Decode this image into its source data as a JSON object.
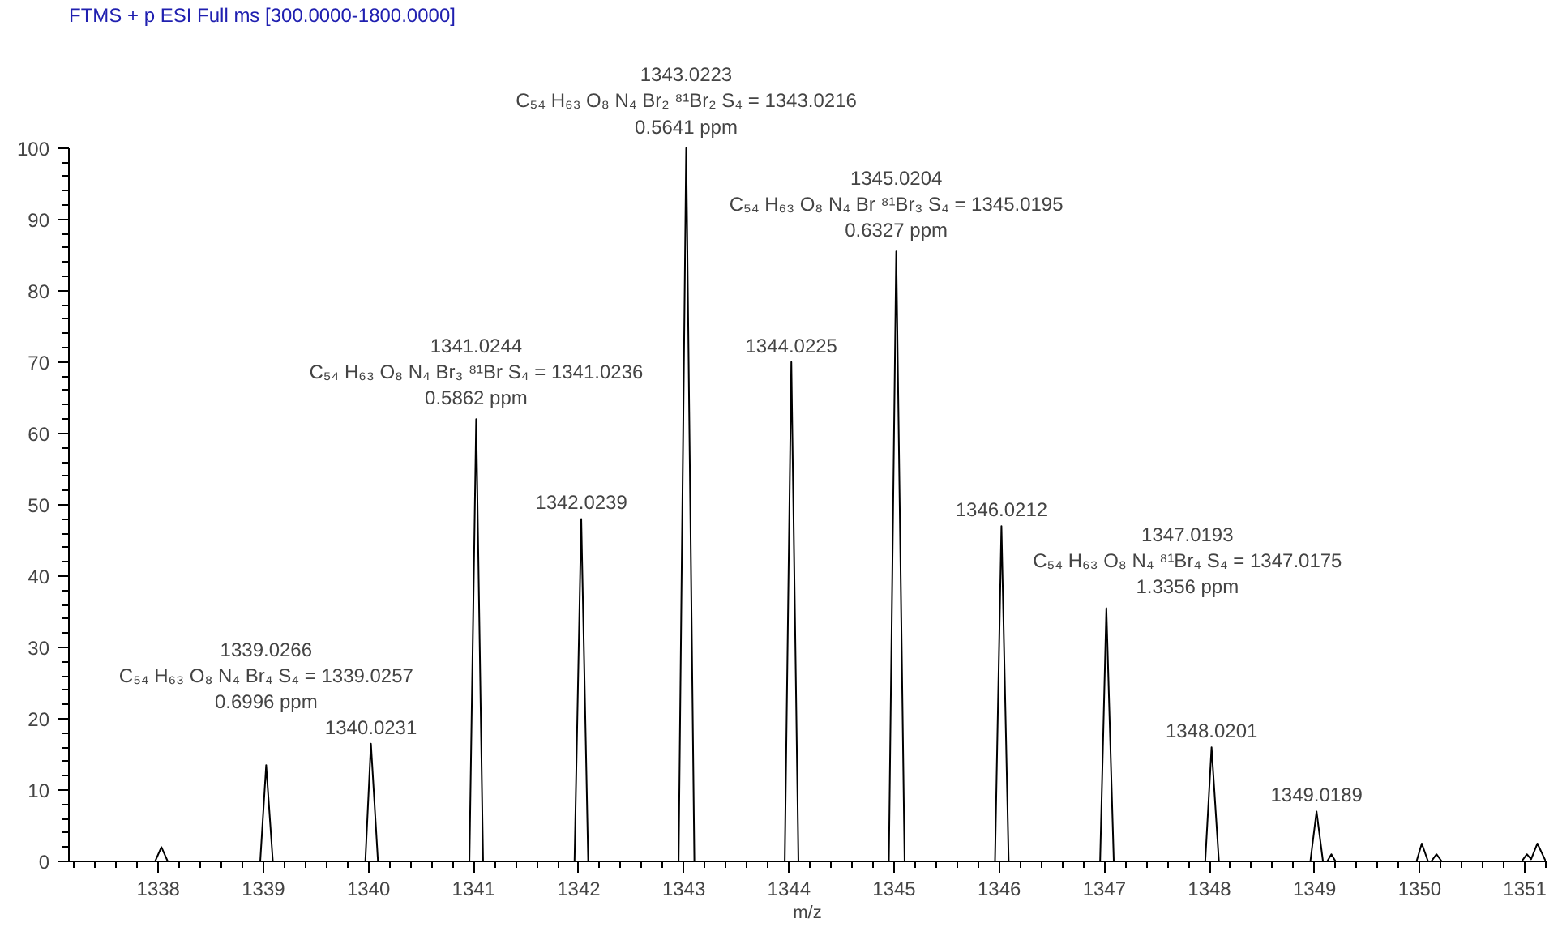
{
  "chart_data": {
    "type": "line",
    "title": "FTMS + p ESI Full ms [300.0000-1800.0000]",
    "xlabel": "m/z",
    "xlim": [
      1337.15,
      1351.2
    ],
    "xticks": [
      1338,
      1339,
      1340,
      1341,
      1342,
      1343,
      1344,
      1345,
      1346,
      1347,
      1348,
      1349,
      1350,
      1351
    ],
    "ylim": [
      0,
      100
    ],
    "yticks": [
      0,
      10,
      20,
      30,
      40,
      50,
      60,
      70,
      80,
      90,
      100
    ],
    "grid": false,
    "series": [
      {
        "color": "#000000",
        "x": [
          1337.15,
          1337.97,
          1338.03,
          1338.09,
          1338.97,
          1339.0266,
          1339.09,
          1339.97,
          1340.0231,
          1340.09,
          1340.96,
          1341.0244,
          1341.09,
          1341.96,
          1342.0239,
          1342.09,
          1342.95,
          1343.0223,
          1343.1,
          1343.96,
          1344.0225,
          1344.09,
          1344.95,
          1345.0204,
          1345.1,
          1345.96,
          1346.0212,
          1346.09,
          1346.96,
          1347.0193,
          1347.09,
          1347.96,
          1348.0201,
          1348.09,
          1348.96,
          1349.0189,
          1349.08,
          1349.12,
          1349.16,
          1349.2,
          1349.97,
          1350.02,
          1350.08,
          1350.11,
          1350.16,
          1350.21,
          1350.97,
          1351.02,
          1351.06,
          1351.12,
          1351.2
        ],
        "values": [
          0,
          0,
          2,
          0,
          0,
          13.5,
          0,
          0,
          16.5,
          0,
          0,
          62,
          0,
          0,
          48,
          0,
          0,
          100,
          0,
          0,
          70,
          0,
          0,
          85.5,
          0,
          0,
          47,
          0,
          0,
          35.5,
          0,
          0,
          16,
          0,
          0,
          7,
          0,
          0,
          1,
          0,
          0,
          2.5,
          0,
          0,
          1,
          0,
          0,
          1,
          0.3,
          2.5,
          0
        ]
      }
    ],
    "annotations": [
      {
        "text": "1339.0266\nC₅₄ H₆₃ O₈ N₄ Br₄ S₄ = 1339.0257\n0.6996 ppm",
        "x": 1339.0266,
        "y": 13.5
      },
      {
        "text": "1340.0231",
        "x": 1340.0231,
        "y": 16.5
      },
      {
        "text": "1341.0244\nC₅₄ H₆₃ O₈ N₄ Br₃ ⁸¹Br S₄ = 1341.0236\n0.5862 ppm",
        "x": 1341.0244,
        "y": 62
      },
      {
        "text": "1342.0239",
        "x": 1342.0239,
        "y": 48
      },
      {
        "text": "1343.0223\nC₅₄ H₆₃ O₈ N₄ Br₂ ⁸¹Br₂ S₄ = 1343.0216\n0.5641 ppm",
        "x": 1343.0223,
        "y": 100
      },
      {
        "text": "1344.0225",
        "x": 1344.0225,
        "y": 70
      },
      {
        "text": "1345.0204\nC₅₄ H₆₃ O₈ N₄ Br ⁸¹Br₃ S₄ = 1345.0195\n0.6327 ppm",
        "x": 1345.0204,
        "y": 85.5
      },
      {
        "text": "1346.0212",
        "x": 1346.0212,
        "y": 47
      },
      {
        "text": "1347.0193\nC₅₄ H₆₃ O₈ N₄ ⁸¹Br₄ S₄ = 1347.0175\n1.3356 ppm",
        "x": 1347.0193,
        "y": 35.5
      },
      {
        "text": "1348.0201",
        "x": 1348.0201,
        "y": 16
      },
      {
        "text": "1349.0189",
        "x": 1349.0189,
        "y": 7
      }
    ]
  }
}
